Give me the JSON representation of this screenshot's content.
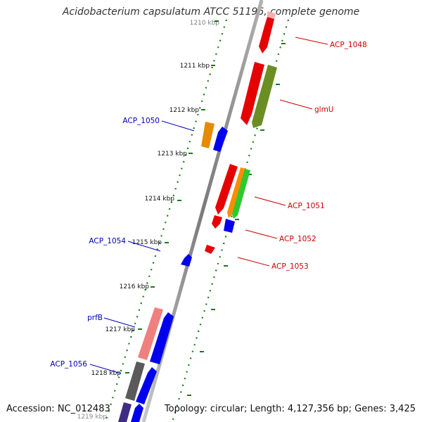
{
  "title": "Acidobacterium capsulatum ATCC 51196, complete genome",
  "footer": {
    "accession": "Accession: NC_012483",
    "summary": "Topology: circular; Length: 4,127,356 bp; Genes: 3,425"
  },
  "colors": {
    "backbone": "#8c8c8c",
    "tick": "#1a7a1a",
    "label_forward": "#cc0000",
    "label_reverse": "#0000bb"
  },
  "kbp_labels": [
    "1210 kbp",
    "1211 kbp",
    "1212 kbp",
    "1213 kbp",
    "1214 kbp",
    "1215 kbp",
    "1216 kbp",
    "1217 kbp",
    "1218 kbp",
    "1219 kbp"
  ],
  "gene_labels": {
    "forward": [
      "ACP_1048",
      "glmU",
      "ACP_1051",
      "ACP_1052",
      "ACP_1053"
    ],
    "reverse": [
      "ACP_1050",
      "ACP_1054",
      "prfB",
      "ACP_1056"
    ]
  }
}
